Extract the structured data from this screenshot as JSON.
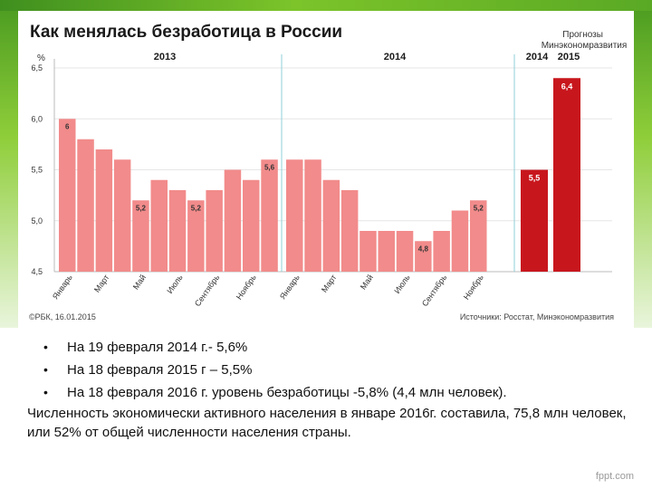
{
  "chart_data": {
    "type": "bar",
    "title": "Как менялась безработица в России",
    "ylabel": "%",
    "ylim": [
      4.5,
      6.5
    ],
    "yticks": [
      "6,5",
      "6,0",
      "5,5",
      "5,0",
      "4,5"
    ],
    "year_labels": [
      "2013",
      "2014"
    ],
    "forecast_header": "Прогнозы\nМинэкономразвития",
    "forecast_years": [
      "2014",
      "2015"
    ],
    "series": [
      {
        "name": "2013",
        "values": [
          6.0,
          5.8,
          5.7,
          5.6,
          5.2,
          5.4,
          5.3,
          5.2,
          5.3,
          5.5,
          5.4,
          5.6
        ],
        "color": "#f28b8b"
      },
      {
        "name": "2014",
        "values": [
          5.6,
          5.6,
          5.4,
          5.3,
          4.9,
          4.9,
          4.9,
          4.8,
          4.9,
          5.1,
          5.2
        ],
        "color": "#f28b8b"
      },
      {
        "name": "Прогнозы",
        "values": [
          5.5,
          6.4
        ],
        "color": "#c8161d"
      }
    ],
    "month_labels": [
      "Январь",
      "Март",
      "Май",
      "Июль",
      "Сентябрь",
      "Ноябрь"
    ],
    "data_labels": [
      {
        "series": 0,
        "index": 0,
        "text": "6"
      },
      {
        "series": 0,
        "index": 4,
        "text": "5,2"
      },
      {
        "series": 0,
        "index": 7,
        "text": "5,2"
      },
      {
        "series": 0,
        "index": 11,
        "text": "5,6"
      },
      {
        "series": 1,
        "index": 7,
        "text": "4,8"
      },
      {
        "series": 1,
        "index": 10,
        "text": "5,2"
      },
      {
        "series": 2,
        "index": 0,
        "text": "5,5"
      },
      {
        "series": 2,
        "index": 1,
        "text": "6,4"
      }
    ],
    "source_left": "©РБК, 16.01.2015",
    "source_right": "Источники: Росстат, Минэкономразвития",
    "colors": {
      "bar": "#f28b8b",
      "forecast": "#c8161d",
      "grid": "#e6e6e6",
      "title": "#1a1a1a",
      "divider": "#8fd0d8"
    }
  },
  "bullets": [
    "На 19 февраля 2014 г.- 5,6%",
    "На 18 февраля 2015 г – 5,5%",
    "На 18 февраля 2016 г. уровень безработицы -5,8% (4,4 млн человек)."
  ],
  "paragraph": "Численность экономически активного населения в январе 2016г. составила, 75,8 млн человек, или 52% от общей численности населения страны.",
  "watermark": "fppt.com"
}
